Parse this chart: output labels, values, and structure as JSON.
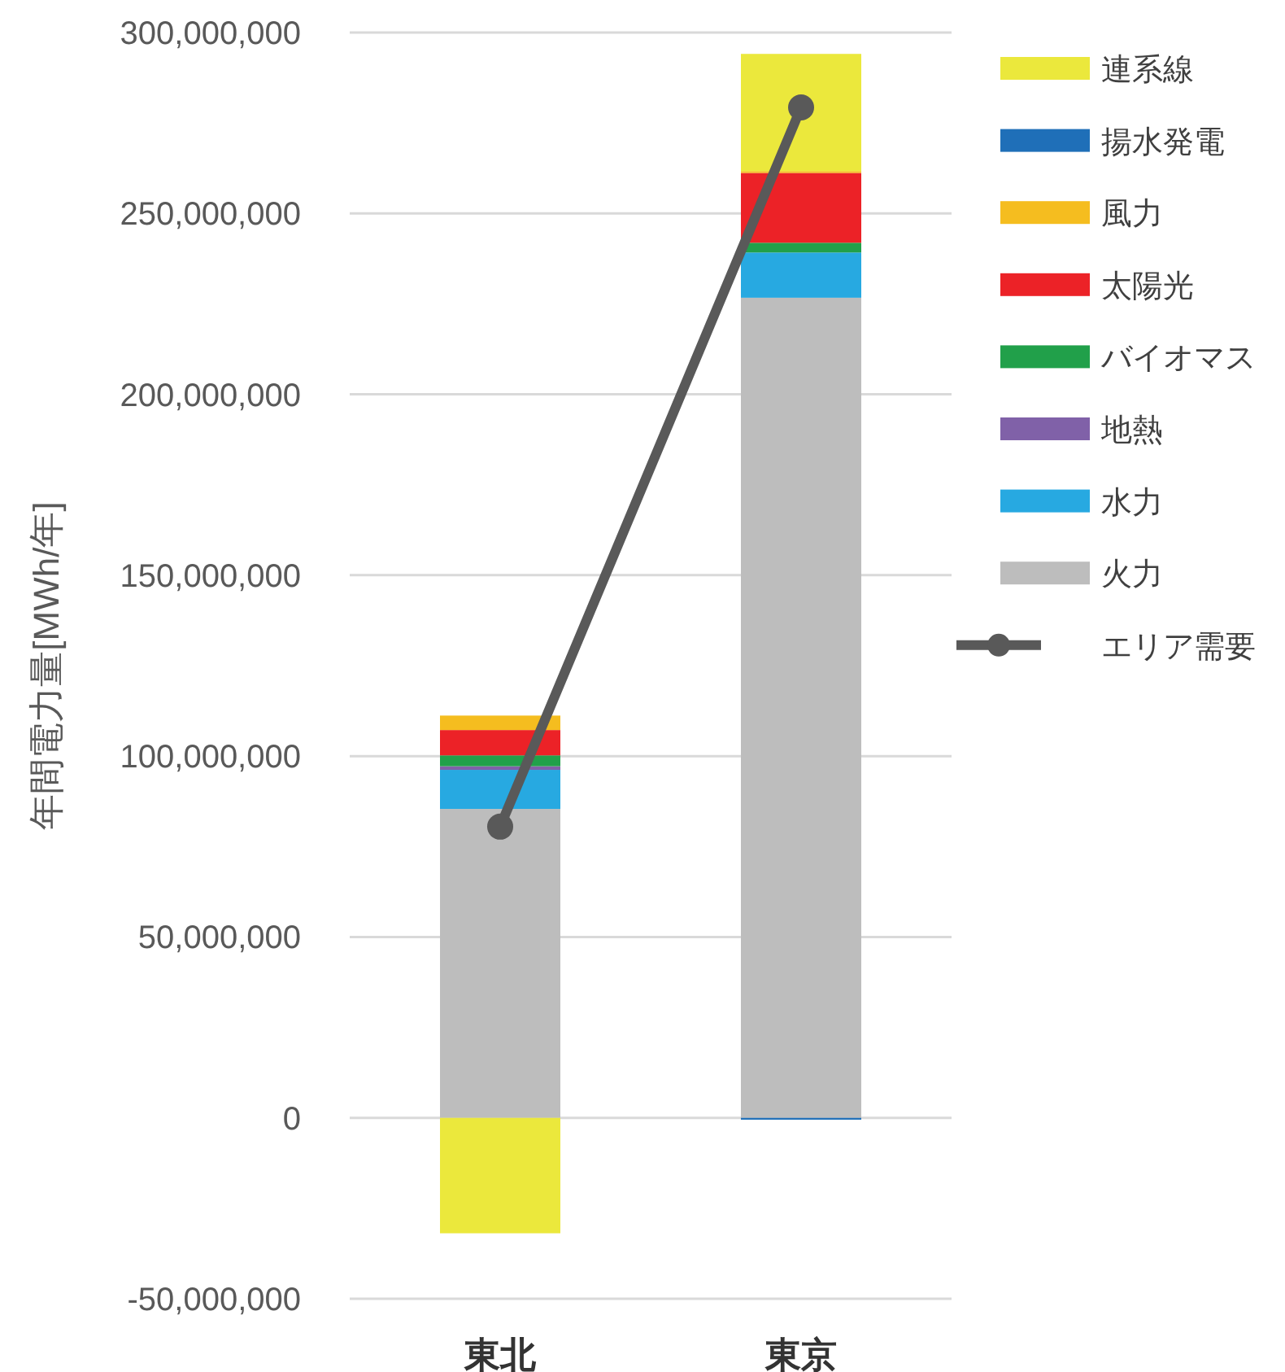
{
  "chart_data": {
    "type": "bar",
    "stacked": true,
    "ylabel": "年間電力量[MWh/年]",
    "categories": [
      "東北",
      "東京"
    ],
    "series": [
      {
        "name": "火力",
        "color": "#bdbdbd",
        "values": [
          85400000,
          226700000
        ]
      },
      {
        "name": "水力",
        "color": "#27a9e1",
        "values": [
          10800000,
          12500000
        ]
      },
      {
        "name": "地熱",
        "color": "#8061a8",
        "values": [
          1000000,
          0
        ]
      },
      {
        "name": "バイオマス",
        "color": "#21a04a",
        "values": [
          3000000,
          2700000
        ]
      },
      {
        "name": "太陽光",
        "color": "#ec2227",
        "values": [
          7000000,
          19300000
        ]
      },
      {
        "name": "風力",
        "color": "#f5bd1f",
        "values": [
          4000000,
          500000
        ]
      },
      {
        "name": "揚水発電",
        "color": "#1f6fb8",
        "values": [
          0,
          -500000
        ]
      },
      {
        "name": "連系線",
        "color": "#ebe83c",
        "values": [
          -31900000,
          32400000
        ]
      },
      {
        "name": "エリア需要",
        "type": "line",
        "color": "#595959",
        "marker": "circle",
        "values": [
          80500000,
          279300000
        ]
      }
    ],
    "ylim": [
      -50000000,
      300000000
    ],
    "yticks": [
      {
        "value": -50000000,
        "label": "-50,000,000"
      },
      {
        "value": 0,
        "label": "0"
      },
      {
        "value": 50000000,
        "label": "50,000,000"
      },
      {
        "value": 100000000,
        "label": "100,000,000"
      },
      {
        "value": 150000000,
        "label": "150,000,000"
      },
      {
        "value": 200000000,
        "label": "200,000,000"
      },
      {
        "value": 250000000,
        "label": "250,000,000"
      },
      {
        "value": 300000000,
        "label": "300,000,000"
      }
    ],
    "grid": "y",
    "legend": "right"
  }
}
